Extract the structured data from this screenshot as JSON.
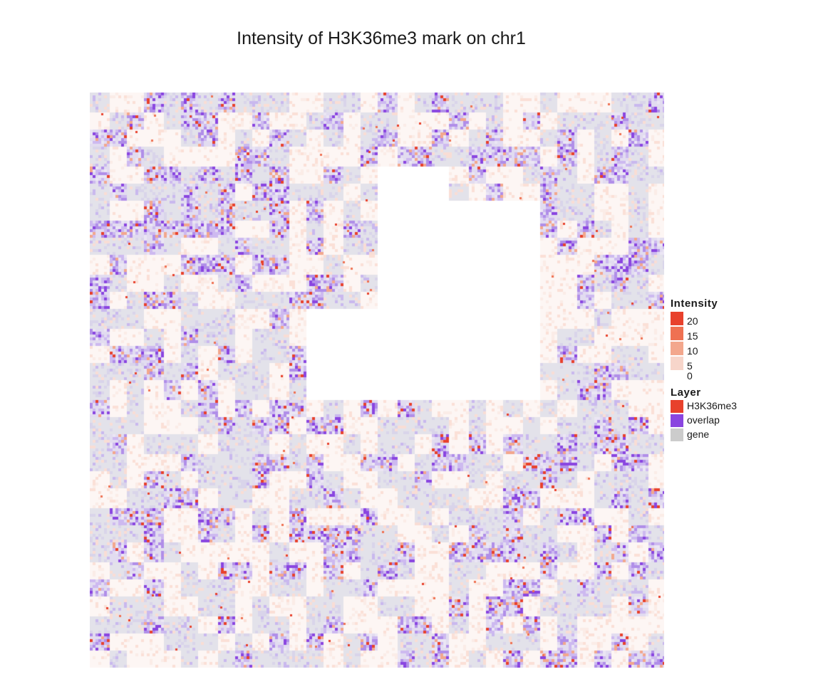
{
  "chart_data": {
    "type": "heatmap",
    "title": "Intensity of H3K36me3 mark on chr1",
    "xlabel": "",
    "ylabel": "",
    "grid": false,
    "legend_position": "right",
    "legends": {
      "intensity": {
        "title": "Intensity",
        "ticks": [
          "20",
          "15",
          "10",
          "5",
          "0"
        ],
        "colors": [
          "#e8412c",
          "#ef7152",
          "#f3a78d",
          "#f7d5ca",
          "#ffffff"
        ],
        "range": [
          0,
          20
        ]
      },
      "layer": {
        "title": "Layer",
        "items": [
          {
            "label": "H3K36me3",
            "color": "#e8412c"
          },
          {
            "label": "overlap",
            "color": "#8a45e0"
          },
          {
            "label": "gene",
            "color": "#cccccc"
          }
        ]
      }
    },
    "colors": {
      "h3k36me3": "#e8412c",
      "overlap": "#8a45e0",
      "gene": "#d4d4dc",
      "background": "#ffffff"
    }
  }
}
